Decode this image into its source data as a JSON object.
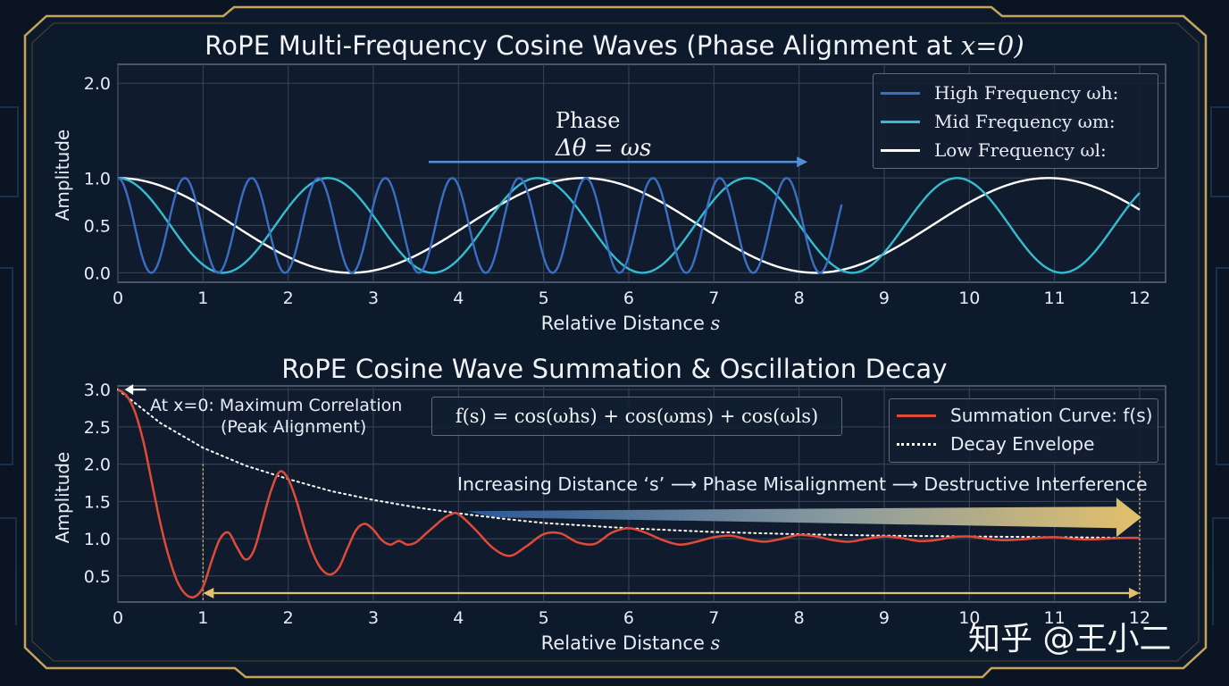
{
  "colors": {
    "high": "#3a6fc4",
    "mid": "#35bcd0",
    "low": "#ffffff",
    "sum": "#e04a38",
    "gold": "#e3c06c",
    "frame": "#c7a45a"
  },
  "watermark": "知乎 @王小二",
  "chart_data": [
    {
      "type": "line",
      "title": "RoPE Multi-Frequency Cosine Waves (Phase Alignment at ",
      "title_math": "x=0)",
      "xlabel": "Relative Distance ",
      "xlabel_math": "s",
      "ylabel": "Amplitude",
      "xlim": [
        0,
        12
      ],
      "ylim": [
        -0.1,
        2.2
      ],
      "xticks": [
        "0",
        "1",
        "2",
        "3",
        "4",
        "5",
        "6",
        "7",
        "8",
        "9",
        "10",
        "11",
        "12"
      ],
      "yticks": [
        "0.0",
        "0.5",
        "1.0",
        "2.0"
      ],
      "grid": true,
      "legend_position": "top-right",
      "series": [
        {
          "name": "High Frequency ωh:",
          "angular_frequency": 8.0,
          "start_x": 0,
          "end_x": 8.5
        },
        {
          "name": "Mid Frequency ωm:",
          "angular_frequency": 2.55,
          "start_x": 0,
          "end_x": 12
        },
        {
          "name": "Low Frequency ωl:",
          "angular_frequency": 1.15,
          "start_x": 0,
          "end_x": 12
        }
      ],
      "annotation": {
        "label": "Phase",
        "formula": "Δθ = ωs",
        "arrow_from_x": 3.65,
        "arrow_to_x": 8.1,
        "arrow_y": 1.17
      }
    },
    {
      "type": "line",
      "title": "RoPE Cosine Wave Summation & Oscillation Decay",
      "xlabel": "Relative Distance ",
      "xlabel_math": "s",
      "ylabel": "Amplitude",
      "xlim": [
        0,
        12.25
      ],
      "ylim": [
        0.15,
        3.05
      ],
      "xticks": [
        "0",
        "1",
        "2",
        "3",
        "4",
        "5",
        "6",
        "7",
        "8",
        "9",
        "10",
        "11",
        "12"
      ],
      "yticks": [
        "0.5",
        "1.0",
        "1.5",
        "2.0",
        "2.5",
        "3.0"
      ],
      "grid": true,
      "legend_position": "top-right",
      "formula": "f(s) = cos(ωhs) + cos(ωms) + cos(ωls)",
      "series": [
        {
          "name": "Summation Curve: f(s)",
          "x": [
            0,
            0.1,
            0.2,
            0.3,
            0.4,
            0.5,
            0.6,
            0.7,
            0.8,
            0.9,
            1.0,
            1.1,
            1.2,
            1.3,
            1.4,
            1.5,
            1.6,
            1.7,
            1.8,
            1.9,
            2.0,
            2.1,
            2.2,
            2.3,
            2.4,
            2.5,
            2.6,
            2.7,
            2.8,
            2.9,
            3.0,
            3.1,
            3.2,
            3.3,
            3.4,
            3.5,
            3.6,
            3.7,
            3.8,
            3.9,
            4.0,
            4.2,
            4.4,
            4.6,
            4.8,
            5.0,
            5.2,
            5.4,
            5.6,
            5.8,
            6.0,
            6.2,
            6.4,
            6.6,
            6.8,
            7.0,
            7.2,
            7.4,
            7.6,
            7.8,
            8.0,
            8.2,
            8.4,
            8.6,
            8.8,
            9.0,
            9.2,
            9.4,
            9.6,
            9.8,
            10.0,
            10.2,
            10.4,
            10.6,
            10.8,
            11.0,
            11.2,
            11.4,
            11.6,
            11.8,
            12.0
          ],
          "y": [
            3.0,
            2.92,
            2.7,
            2.3,
            1.75,
            1.2,
            0.75,
            0.42,
            0.25,
            0.22,
            0.35,
            0.7,
            1.0,
            1.08,
            0.88,
            0.72,
            0.85,
            1.25,
            1.65,
            1.9,
            1.8,
            1.5,
            1.1,
            0.78,
            0.58,
            0.52,
            0.62,
            0.88,
            1.12,
            1.2,
            1.12,
            0.98,
            0.92,
            0.97,
            0.92,
            0.95,
            1.05,
            1.15,
            1.25,
            1.32,
            1.33,
            1.12,
            0.88,
            0.77,
            0.9,
            1.06,
            1.07,
            0.95,
            0.93,
            1.08,
            1.14,
            1.08,
            0.98,
            0.92,
            0.96,
            1.02,
            1.04,
            0.99,
            0.96,
            1.0,
            1.05,
            1.03,
            0.98,
            0.96,
            1.0,
            1.03,
            1.01,
            0.97,
            0.98,
            1.02,
            1.03,
            1.0,
            0.98,
            0.99,
            1.01,
            1.02,
            1.0,
            0.99,
            1.0,
            1.01,
            1.01
          ]
        },
        {
          "name": "Decay Envelope",
          "x": [
            0,
            0.5,
            1.0,
            1.5,
            2.0,
            2.5,
            3.0,
            3.5,
            4.0,
            4.5,
            5.0,
            6.0,
            7.0,
            8.0,
            9.0,
            10.0,
            11.0,
            12.0
          ],
          "y": [
            3.0,
            2.55,
            2.22,
            1.98,
            1.8,
            1.64,
            1.52,
            1.42,
            1.34,
            1.27,
            1.21,
            1.14,
            1.09,
            1.06,
            1.04,
            1.03,
            1.02,
            1.01
          ]
        }
      ],
      "annotations": {
        "peak_line1": "At x=0: Maximum Correlation",
        "peak_line2": "(Peak Alignment)",
        "arrow_text": "Increasing Distance ‘s’ ⟶ Phase Misalignment ⟶ Destructive Interference",
        "range_from_x": 1,
        "range_to_x": 12
      }
    }
  ]
}
